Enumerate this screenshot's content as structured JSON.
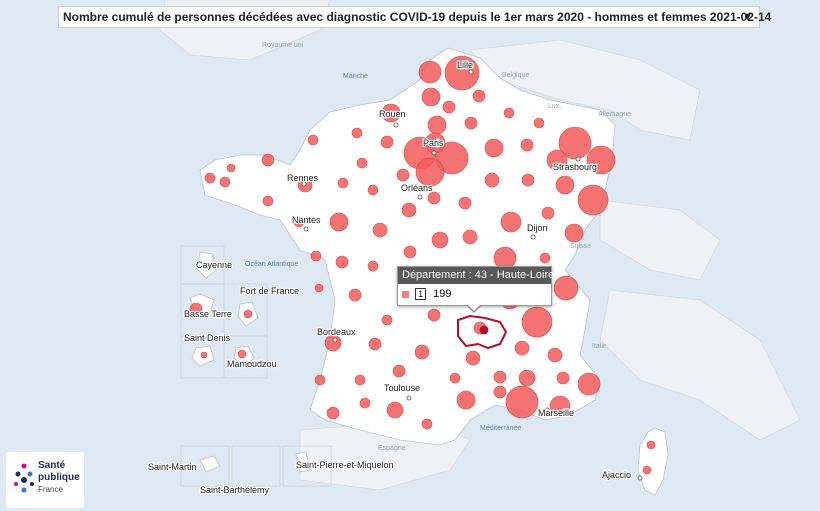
{
  "title": "Nombre cumulé de personnes décédées avec diagnostic COVID-19 depuis le 1er mars 2020 - hommes et femmes  2021-02-14",
  "title_arrow": "▼",
  "tooltip": {
    "header": "Département : 43 - Haute-Loire",
    "rank": "1",
    "value": "199"
  },
  "cities": [
    "Lille",
    "Rouen",
    "Paris",
    "Strasbourg",
    "Rennes",
    "Orléans",
    "Nantes",
    "Dijon",
    "Bordeaux",
    "Toulouse",
    "Marseille",
    "Ajaccio"
  ],
  "seas": [
    "Manche",
    "Océan Atlantique",
    "Méditerranée"
  ],
  "countries": [
    "Royaume uni",
    "Belgique",
    "Lux.",
    "Allemagne",
    "Suisse",
    "Italie",
    "Espagne"
  ],
  "overseas": [
    "Cayenne",
    "Fort de France",
    "Basse Terre",
    "Saint Denis",
    "Mamoudzou",
    "Saint-Martin",
    "Saint-Barthélemy",
    "Saint-Pierre-et-Miquelon"
  ],
  "logo": {
    "line1": "Santé",
    "line2": "publique",
    "line3": "France"
  },
  "colors": {
    "bubble": "#f45a5a",
    "land": "#ffffff",
    "sea": "#dfe9f3",
    "highlight": "#b0102a"
  }
}
